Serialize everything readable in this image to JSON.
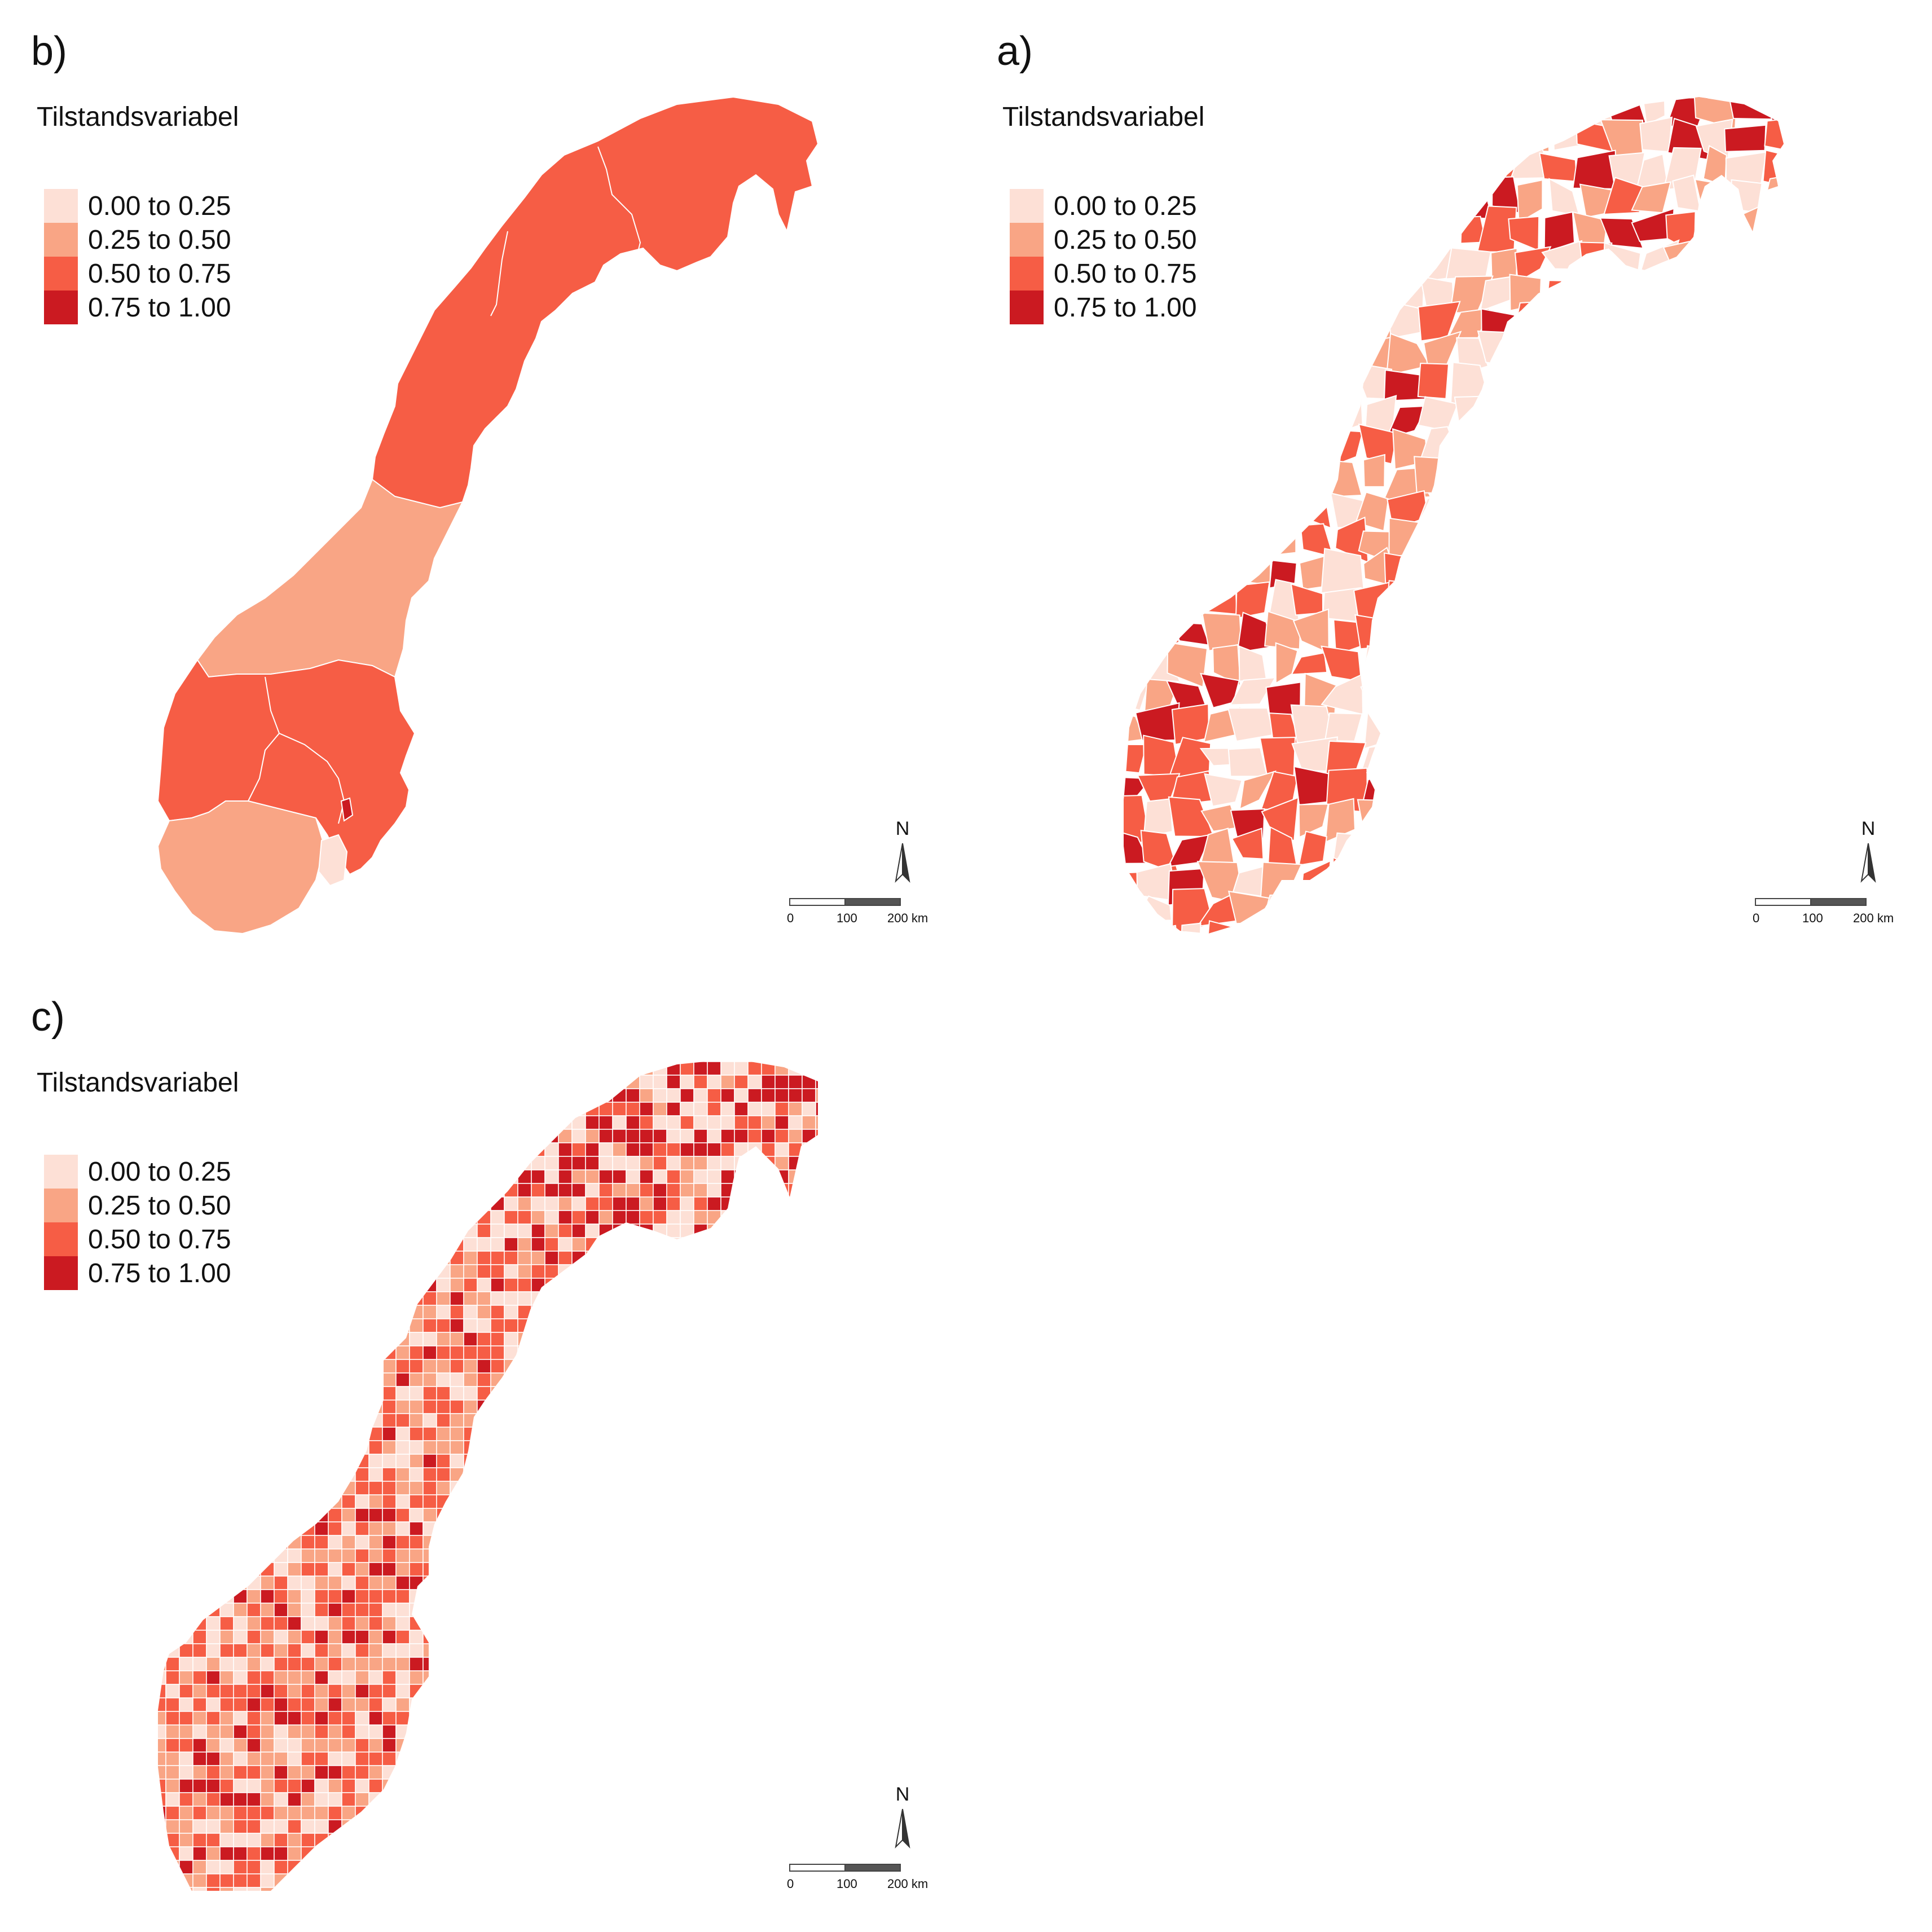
{
  "panels": [
    {
      "id": "b",
      "label": "b)",
      "legend_title": "Tilstandsvariabel",
      "map_type": "county regions"
    },
    {
      "id": "a",
      "label": "a)",
      "legend_title": "Tilstandsvariabel",
      "map_type": "municipality regions"
    },
    {
      "id": "c",
      "label": "c)",
      "legend_title": "Tilstandsvariabel",
      "map_type": "grid cells"
    }
  ],
  "legend": {
    "classes": [
      {
        "label": "0.00 to 0.25",
        "color": "#fde0d6"
      },
      {
        "label": "0.25 to 0.50",
        "color": "#f9a585"
      },
      {
        "label": "0.50 to 0.75",
        "color": "#f65d45"
      },
      {
        "label": "0.75 to 1.00",
        "color": "#cb1a21"
      }
    ]
  },
  "north_arrow": {
    "label": "N",
    "icon": "north-arrow-icon"
  },
  "scalebar": {
    "ticks": [
      "0",
      "100",
      "200 km"
    ]
  }
}
